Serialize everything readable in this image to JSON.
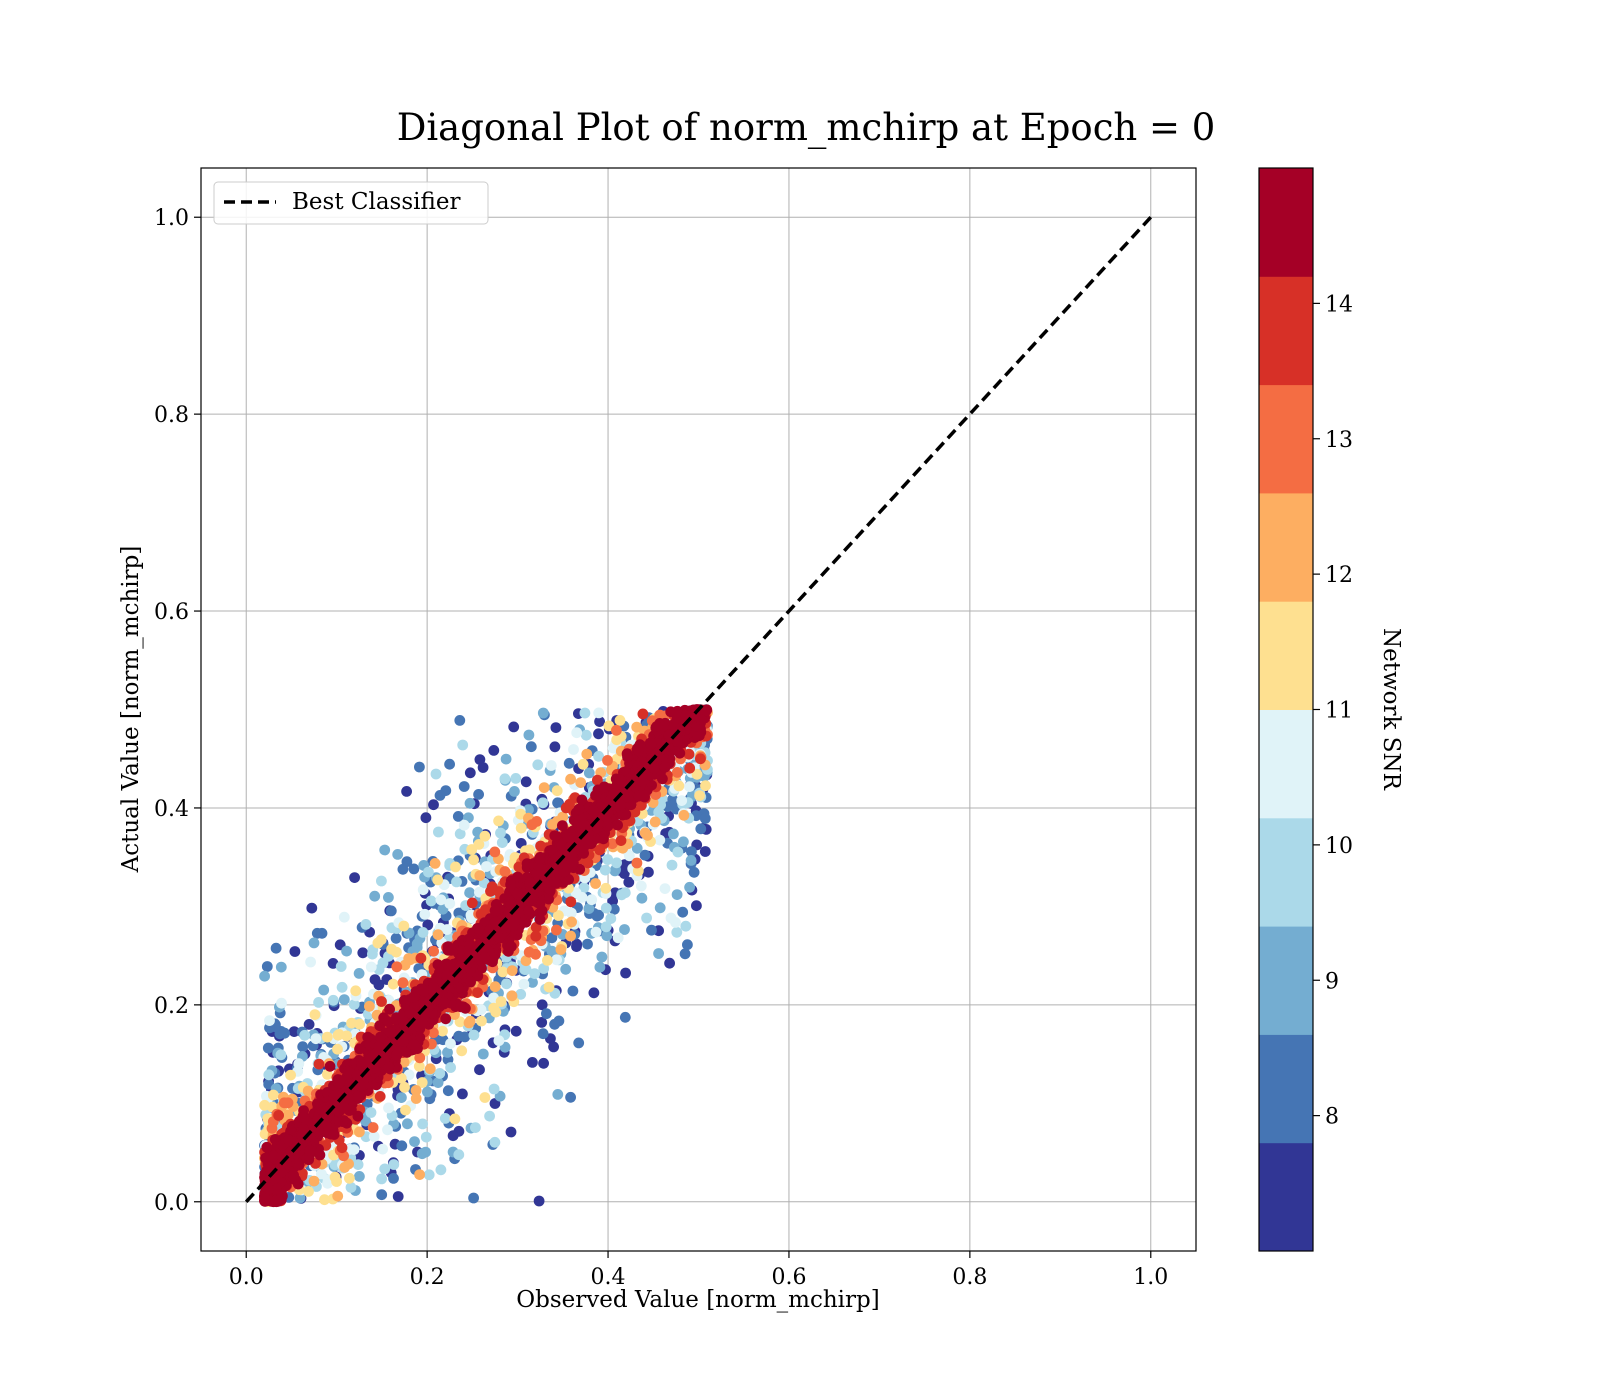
{
  "chart_data": {
    "type": "scatter",
    "title": "Diagonal Plot of norm_mchirp at Epoch = 0",
    "xlabel": "Observed Value [norm_mchirp]",
    "ylabel": "Actual Value [norm_mchirp]",
    "xlim": [
      -0.05,
      1.05
    ],
    "ylim": [
      -0.05,
      1.05
    ],
    "x_ticks": [
      0.0,
      0.2,
      0.4,
      0.6,
      0.8,
      1.0
    ],
    "y_ticks": [
      0.0,
      0.2,
      0.4,
      0.6,
      0.8,
      1.0
    ],
    "x_tick_labels": [
      "0.0",
      "0.2",
      "0.4",
      "0.6",
      "0.8",
      "1.0"
    ],
    "y_tick_labels": [
      "0.0",
      "0.2",
      "0.4",
      "0.6",
      "0.8",
      "1.0"
    ],
    "grid": true,
    "legend": {
      "placement": "top-left",
      "entries": [
        "Best Classifier"
      ]
    },
    "reference_line": {
      "name": "Best Classifier",
      "style": "dashed",
      "color": "#000000",
      "x": [
        0.0,
        1.0
      ],
      "y": [
        0.0,
        1.0
      ]
    },
    "scatter_summary": {
      "actual_range": [
        0.0,
        0.5
      ],
      "observed_range": [
        0.02,
        0.51
      ],
      "note_on_colors": "high SNR points cluster along diagonal; low SNR points spread wider"
    },
    "colorbar": {
      "label": "Network SNR",
      "range": [
        7,
        15
      ],
      "ticks": [
        8,
        9,
        10,
        11,
        12,
        13,
        14
      ],
      "tick_labels": [
        "8",
        "9",
        "10",
        "11",
        "12",
        "13",
        "14"
      ],
      "colors": [
        "#313695",
        "#4575b4",
        "#74add1",
        "#abd9e9",
        "#e0f3f8",
        "#fee090",
        "#fdae61",
        "#f46d43",
        "#d73027",
        "#a50026"
      ]
    }
  }
}
